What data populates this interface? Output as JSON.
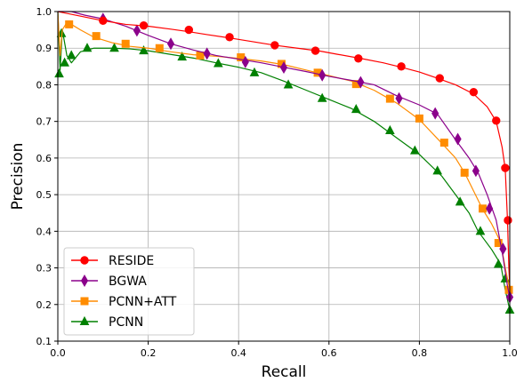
{
  "chart_data": {
    "type": "line",
    "title": "",
    "xlabel": "Recall",
    "ylabel": "Precision",
    "xlim": [
      0.0,
      1.0
    ],
    "ylim": [
      0.1,
      1.0
    ],
    "xticks": [
      "0.0",
      "0.2",
      "0.4",
      "0.6",
      "0.8",
      "1.0"
    ],
    "yticks": [
      "0.1",
      "0.2",
      "0.3",
      "0.4",
      "0.5",
      "0.6",
      "0.7",
      "0.8",
      "0.9",
      "1.0"
    ],
    "grid": true,
    "legend_position": "lower-left",
    "series": [
      {
        "name": "RESIDE",
        "color": "#ff0000",
        "marker": "circle",
        "x": [
          0.0,
          0.02,
          0.06,
          0.1,
          0.15,
          0.2,
          0.25,
          0.29,
          0.33,
          0.38,
          0.43,
          0.48,
          0.53,
          0.58,
          0.62,
          0.67,
          0.72,
          0.76,
          0.8,
          0.84,
          0.88,
          0.92,
          0.95,
          0.97,
          0.983,
          0.99,
          0.995,
          0.998,
          1.0
        ],
        "y": [
          1.0,
          0.995,
          0.985,
          0.975,
          0.965,
          0.96,
          0.952,
          0.945,
          0.937,
          0.928,
          0.918,
          0.908,
          0.9,
          0.892,
          0.883,
          0.872,
          0.86,
          0.848,
          0.835,
          0.818,
          0.8,
          0.775,
          0.74,
          0.7,
          0.63,
          0.57,
          0.43,
          0.3,
          0.25
        ],
        "markers_x": [
          0.1,
          0.19,
          0.29,
          0.38,
          0.48,
          0.57,
          0.665,
          0.76,
          0.845,
          0.92,
          0.97,
          0.99,
          0.996
        ],
        "markers_y": [
          0.975,
          0.962,
          0.95,
          0.93,
          0.908,
          0.893,
          0.872,
          0.85,
          0.818,
          0.78,
          0.702,
          0.573,
          0.43
        ]
      },
      {
        "name": "BGWA",
        "color": "#8b008b",
        "marker": "diamond",
        "x": [
          0.0,
          0.03,
          0.06,
          0.1,
          0.15,
          0.2,
          0.25,
          0.3,
          0.35,
          0.4,
          0.45,
          0.5,
          0.55,
          0.6,
          0.65,
          0.7,
          0.75,
          0.8,
          0.84,
          0.88,
          0.91,
          0.93,
          0.95,
          0.97,
          0.985,
          0.995,
          1.0
        ],
        "y": [
          1.0,
          1.0,
          0.99,
          0.98,
          0.96,
          0.935,
          0.912,
          0.895,
          0.88,
          0.87,
          0.86,
          0.848,
          0.836,
          0.823,
          0.812,
          0.8,
          0.77,
          0.745,
          0.72,
          0.65,
          0.6,
          0.56,
          0.5,
          0.43,
          0.33,
          0.25,
          0.22
        ],
        "markers_x": [
          0.1,
          0.175,
          0.25,
          0.33,
          0.415,
          0.5,
          0.585,
          0.67,
          0.755,
          0.835,
          0.885,
          0.925,
          0.955,
          0.985,
          1.0
        ],
        "markers_y": [
          0.98,
          0.948,
          0.912,
          0.885,
          0.862,
          0.847,
          0.826,
          0.807,
          0.763,
          0.722,
          0.652,
          0.565,
          0.462,
          0.352,
          0.22
        ]
      },
      {
        "name": "PCNN+ATT",
        "color": "#ff8c00",
        "marker": "square",
        "x": [
          0.0,
          0.005,
          0.01,
          0.02,
          0.03,
          0.05,
          0.08,
          0.12,
          0.16,
          0.2,
          0.25,
          0.3,
          0.35,
          0.4,
          0.45,
          0.5,
          0.55,
          0.6,
          0.65,
          0.7,
          0.75,
          0.8,
          0.85,
          0.88,
          0.9,
          0.92,
          0.94,
          0.96,
          0.98,
          0.99,
          1.0
        ],
        "y": [
          1.0,
          0.88,
          0.95,
          0.97,
          0.965,
          0.95,
          0.93,
          0.915,
          0.905,
          0.9,
          0.89,
          0.882,
          0.878,
          0.872,
          0.865,
          0.855,
          0.84,
          0.825,
          0.81,
          0.785,
          0.75,
          0.705,
          0.64,
          0.6,
          0.56,
          0.51,
          0.46,
          0.42,
          0.37,
          0.3,
          0.24
        ],
        "markers_x": [
          0.025,
          0.085,
          0.15,
          0.225,
          0.315,
          0.405,
          0.495,
          0.575,
          0.66,
          0.735,
          0.8,
          0.855,
          0.9,
          0.94,
          0.975,
          0.998
        ],
        "markers_y": [
          0.965,
          0.933,
          0.912,
          0.9,
          0.88,
          0.875,
          0.857,
          0.833,
          0.802,
          0.762,
          0.708,
          0.642,
          0.56,
          0.462,
          0.368,
          0.24
        ]
      },
      {
        "name": "PCNN",
        "color": "#008000",
        "marker": "triangle",
        "x": [
          0.0,
          0.005,
          0.01,
          0.02,
          0.03,
          0.05,
          0.08,
          0.12,
          0.16,
          0.2,
          0.25,
          0.3,
          0.35,
          0.4,
          0.45,
          0.5,
          0.55,
          0.6,
          0.65,
          0.7,
          0.75,
          0.8,
          0.85,
          0.88,
          0.91,
          0.93,
          0.96,
          0.98,
          0.99,
          1.0
        ],
        "y": [
          1.0,
          0.84,
          0.95,
          0.88,
          0.86,
          0.89,
          0.9,
          0.9,
          0.898,
          0.893,
          0.883,
          0.873,
          0.86,
          0.848,
          0.833,
          0.81,
          0.785,
          0.76,
          0.735,
          0.7,
          0.655,
          0.61,
          0.55,
          0.5,
          0.45,
          0.4,
          0.35,
          0.31,
          0.24,
          0.185
        ],
        "markers_x": [
          0.003,
          0.008,
          0.015,
          0.03,
          0.065,
          0.125,
          0.19,
          0.275,
          0.355,
          0.435,
          0.51,
          0.585,
          0.66,
          0.735,
          0.79,
          0.84,
          0.89,
          0.935,
          0.975,
          0.99,
          1.0
        ],
        "markers_y": [
          0.83,
          0.94,
          0.86,
          0.88,
          0.9,
          0.9,
          0.893,
          0.876,
          0.858,
          0.833,
          0.8,
          0.763,
          0.733,
          0.675,
          0.62,
          0.565,
          0.48,
          0.4,
          0.31,
          0.27,
          0.185
        ]
      }
    ]
  }
}
